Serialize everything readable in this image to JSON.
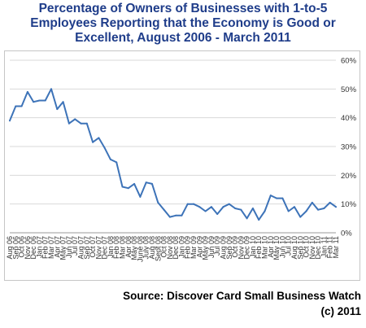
{
  "title_lines": [
    "Percentage of Owners of Businesses with 1-to-5",
    "Employees Reporting that the Economy is Good or",
    "Excellent, August 2006 - March 2011"
  ],
  "source_line": "Source:  Discover Card Small Business Watch",
  "copyright_line": "(c) 2011",
  "chart_data": {
    "type": "line",
    "title": "Percentage of Owners of Businesses with 1-to-5 Employees Reporting that the Economy is Good or Excellent, August 2006 - March 2011",
    "xlabel": "",
    "ylabel": "",
    "ylim": [
      0,
      60
    ],
    "y_ticks": [
      "0%",
      "10%",
      "20%",
      "30%",
      "40%",
      "50%",
      "60%"
    ],
    "y_tick_values": [
      0,
      10,
      20,
      30,
      40,
      50,
      60
    ],
    "y_axis_side": "right",
    "grid": true,
    "legend": "none",
    "line_color": "#3d73b8",
    "grid_color": "#d9d9d9",
    "categories": [
      "Aug 06",
      "Sep 06",
      "Oct 06",
      "Nov 06",
      "Dec 06",
      "Jan 07",
      "Feb 07",
      "Mar 07",
      "Apr 07",
      "May 07",
      "Jun 07",
      "Jul 07",
      "Aug 07",
      "Sep 07",
      "Oct 07",
      "Nov 07",
      "Dec 07",
      "Jan 08",
      "Feb 08",
      "Mar 08",
      "Apr 08",
      "May 08",
      "June 08",
      "July 08",
      "Aug 08",
      "Sept 08",
      "Oct 08",
      "Nov 08",
      "Dec 08",
      "Jan 09",
      "Feb 09",
      "Mar 09",
      "Apr 09",
      "May 09",
      "Jun 09",
      "Jul 09",
      "Aug 09",
      "Sep 09",
      "Oct 09",
      "Nov 09",
      "Dec 09",
      "Jan 10",
      "Feb 10",
      "Mar 10",
      "Apr 10",
      "May 10",
      "Jun 10",
      "Jul 10",
      "Aug 10",
      "Sep 10",
      "Oct 10",
      "Nov 10",
      "Dec 10",
      "Jan 11",
      "Feb 11",
      "Mar 11"
    ],
    "values": [
      39,
      44,
      44,
      49,
      45.5,
      46,
      46,
      50,
      43,
      45.5,
      38,
      39.5,
      38,
      38,
      31.5,
      33,
      29.5,
      25.5,
      24.5,
      16,
      15.5,
      17,
      12.5,
      17.5,
      17,
      10.5,
      8,
      5.5,
      6,
      6,
      10,
      10,
      9,
      7.5,
      9,
      6.5,
      9,
      10,
      8.5,
      8,
      5,
      8.5,
      4.5,
      7.5,
      13,
      12,
      12,
      7.5,
      9,
      5.5,
      7.5,
      10.5,
      8,
      8.5,
      10.5,
      9
    ]
  }
}
